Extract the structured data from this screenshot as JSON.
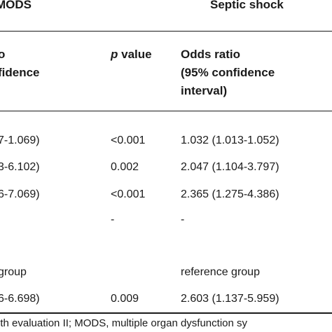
{
  "table": {
    "group_headers": {
      "mods": "MODS",
      "septic_shock": "Septic shock"
    },
    "col_headers": {
      "mods_or_line1": "o",
      "mods_or_line2": "fidence",
      "p_value_italic": "p",
      "p_value_rest": " value",
      "ss_or_line1": "Odds ratio",
      "ss_or_line2": "(95% confidence",
      "ss_or_line3": "interval)"
    },
    "rows": [
      {
        "mods_or": "7-1.069)",
        "p": "<0.001",
        "ss_or": "1.032 (1.013-1.052)"
      },
      {
        "mods_or": "3-6.102)",
        "p": "0.002",
        "ss_or": "2.047 (1.104-3.797)"
      },
      {
        "mods_or": "6-7.069)",
        "p": "<0.001",
        "ss_or": "2.365 (1.275-4.386)"
      },
      {
        "mods_or": "",
        "p": "-",
        "ss_or": "-"
      },
      {
        "mods_or": "",
        "p": "",
        "ss_or": ""
      },
      {
        "mods_or": "group",
        "p": "",
        "ss_or": "reference group"
      },
      {
        "mods_or": "6-6.698)",
        "p": "0.009",
        "ss_or": "2.603 (1.137-5.959)"
      }
    ],
    "footnote": "lth evaluation II; MODS, multiple organ dysfunction sy"
  }
}
